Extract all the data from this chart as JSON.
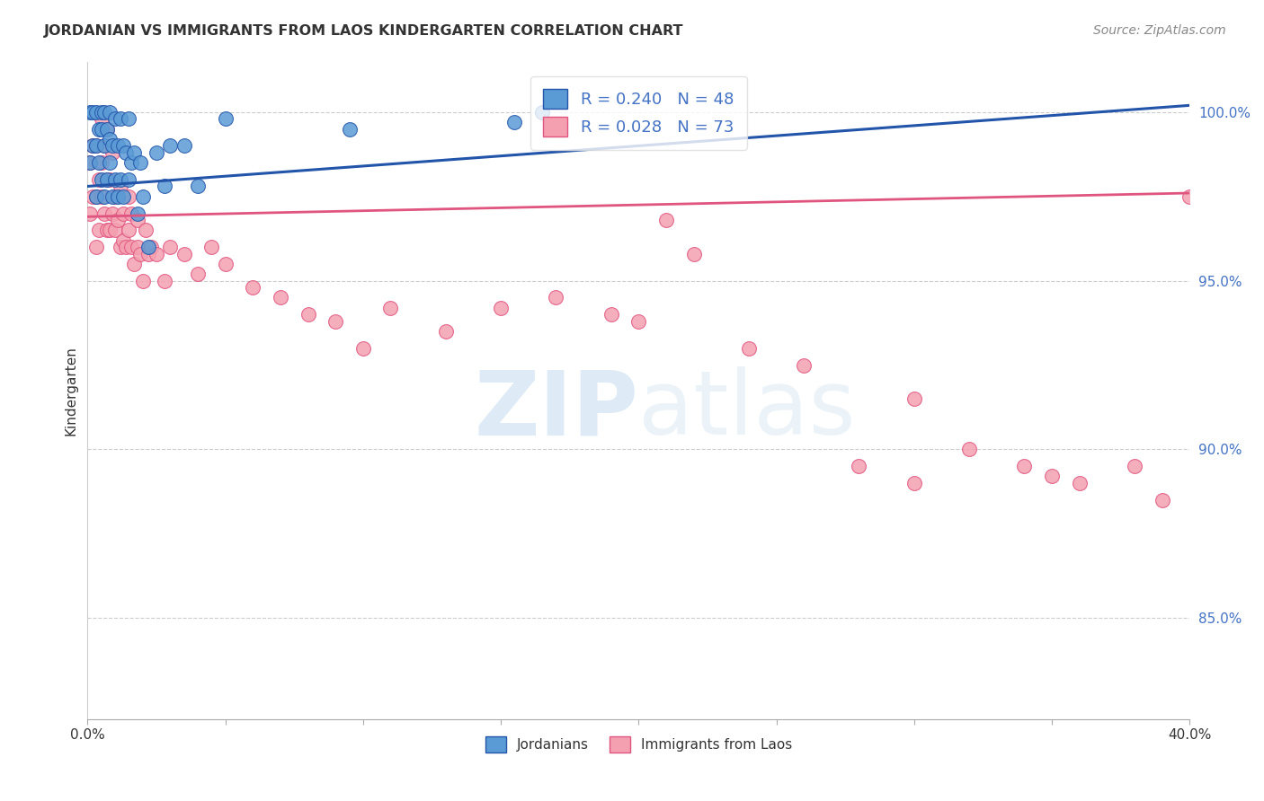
{
  "title": "JORDANIAN VS IMMIGRANTS FROM LAOS KINDERGARTEN CORRELATION CHART",
  "source": "Source: ZipAtlas.com",
  "ylabel": "Kindergarten",
  "ytick_labels": [
    "85.0%",
    "90.0%",
    "95.0%",
    "100.0%"
  ],
  "ytick_values": [
    0.85,
    0.9,
    0.95,
    1.0
  ],
  "xlim": [
    0.0,
    0.4
  ],
  "ylim": [
    0.82,
    1.015
  ],
  "legend_blue": "R = 0.240   N = 48",
  "legend_pink": "R = 0.028   N = 73",
  "blue_color": "#5b9bd5",
  "pink_color": "#f4a0b0",
  "blue_line_color": "#2255aa",
  "pink_line_color": "#e05580",
  "jordanians_x": [
    0.001,
    0.001,
    0.002,
    0.002,
    0.003,
    0.003,
    0.003,
    0.004,
    0.004,
    0.005,
    0.005,
    0.005,
    0.006,
    0.006,
    0.006,
    0.007,
    0.007,
    0.008,
    0.008,
    0.008,
    0.009,
    0.009,
    0.01,
    0.01,
    0.011,
    0.011,
    0.012,
    0.012,
    0.013,
    0.013,
    0.014,
    0.015,
    0.015,
    0.016,
    0.017,
    0.018,
    0.019,
    0.02,
    0.022,
    0.025,
    0.028,
    0.03,
    0.035,
    0.04,
    0.05,
    0.095,
    0.155,
    0.165
  ],
  "jordanians_y": [
    0.985,
    1.0,
    0.99,
    1.0,
    0.975,
    0.99,
    1.0,
    0.985,
    0.995,
    0.98,
    0.995,
    1.0,
    0.975,
    0.99,
    1.0,
    0.98,
    0.995,
    0.985,
    0.992,
    1.0,
    0.975,
    0.99,
    0.98,
    0.998,
    0.975,
    0.99,
    0.98,
    0.998,
    0.975,
    0.99,
    0.988,
    0.98,
    0.998,
    0.985,
    0.988,
    0.97,
    0.985,
    0.975,
    0.96,
    0.988,
    0.978,
    0.99,
    0.99,
    0.978,
    0.998,
    0.995,
    0.997,
    1.0
  ],
  "laos_x": [
    0.001,
    0.001,
    0.002,
    0.002,
    0.003,
    0.003,
    0.003,
    0.004,
    0.004,
    0.005,
    0.005,
    0.005,
    0.006,
    0.006,
    0.007,
    0.007,
    0.007,
    0.008,
    0.008,
    0.009,
    0.009,
    0.01,
    0.01,
    0.011,
    0.012,
    0.012,
    0.013,
    0.013,
    0.014,
    0.015,
    0.015,
    0.016,
    0.016,
    0.017,
    0.018,
    0.018,
    0.019,
    0.02,
    0.021,
    0.022,
    0.023,
    0.025,
    0.028,
    0.03,
    0.035,
    0.04,
    0.045,
    0.05,
    0.06,
    0.07,
    0.08,
    0.09,
    0.1,
    0.11,
    0.13,
    0.15,
    0.17,
    0.19,
    0.2,
    0.21,
    0.22,
    0.24,
    0.26,
    0.28,
    0.3,
    0.32,
    0.34,
    0.36,
    0.38,
    0.39,
    0.4,
    0.3,
    0.35
  ],
  "laos_y": [
    0.97,
    0.985,
    0.975,
    0.99,
    0.96,
    0.975,
    0.99,
    0.965,
    0.98,
    0.975,
    0.985,
    0.998,
    0.97,
    0.99,
    0.965,
    0.98,
    0.995,
    0.965,
    0.98,
    0.97,
    0.988,
    0.965,
    0.975,
    0.968,
    0.96,
    0.978,
    0.962,
    0.97,
    0.96,
    0.965,
    0.975,
    0.96,
    0.97,
    0.955,
    0.96,
    0.968,
    0.958,
    0.95,
    0.965,
    0.958,
    0.96,
    0.958,
    0.95,
    0.96,
    0.958,
    0.952,
    0.96,
    0.955,
    0.948,
    0.945,
    0.94,
    0.938,
    0.93,
    0.942,
    0.935,
    0.942,
    0.945,
    0.94,
    0.938,
    0.968,
    0.958,
    0.93,
    0.925,
    0.895,
    0.915,
    0.9,
    0.895,
    0.89,
    0.895,
    0.885,
    0.975,
    0.89,
    0.892
  ],
  "blue_trend_x": [
    0.0,
    0.4
  ],
  "blue_trend_y": [
    0.978,
    1.002
  ],
  "pink_trend_x": [
    0.0,
    0.4
  ],
  "pink_trend_y": [
    0.969,
    0.976
  ]
}
